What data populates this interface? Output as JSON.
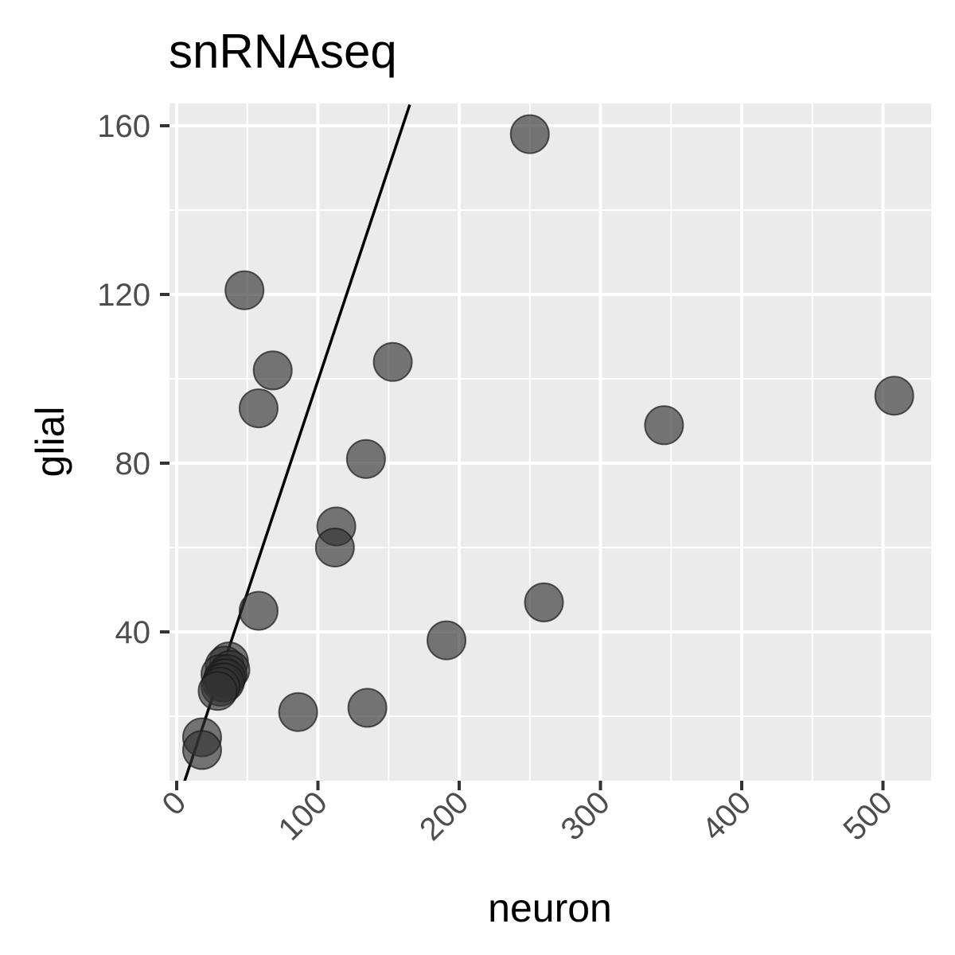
{
  "chart_data": {
    "type": "scatter",
    "title": "snRNAseq",
    "xlabel": "neuron",
    "ylabel": "glial",
    "xlim": [
      0,
      530
    ],
    "ylim": [
      4,
      165
    ],
    "x_ticks": [
      0,
      100,
      200,
      300,
      400,
      500
    ],
    "y_ticks": [
      40,
      80,
      120,
      160
    ],
    "x_tick_labels": [
      "0",
      "100",
      "200",
      "300",
      "400",
      "500"
    ],
    "y_tick_labels": [
      "40",
      "80",
      "120",
      "160"
    ],
    "grid": true,
    "background_color": "#ebebeb",
    "grid_color": "#ffffff",
    "point_color": "#333333",
    "points": [
      {
        "x": 250,
        "y": 158
      },
      {
        "x": 48,
        "y": 121
      },
      {
        "x": 68,
        "y": 102
      },
      {
        "x": 153,
        "y": 104
      },
      {
        "x": 58,
        "y": 93
      },
      {
        "x": 134,
        "y": 81
      },
      {
        "x": 113,
        "y": 65
      },
      {
        "x": 112,
        "y": 60
      },
      {
        "x": 58,
        "y": 45
      },
      {
        "x": 260,
        "y": 47
      },
      {
        "x": 191,
        "y": 38
      },
      {
        "x": 345,
        "y": 89
      },
      {
        "x": 508,
        "y": 96
      },
      {
        "x": 37,
        "y": 33
      },
      {
        "x": 34,
        "y": 32
      },
      {
        "x": 38,
        "y": 31
      },
      {
        "x": 31,
        "y": 30
      },
      {
        "x": 36,
        "y": 30
      },
      {
        "x": 33,
        "y": 29
      },
      {
        "x": 35,
        "y": 29
      },
      {
        "x": 32,
        "y": 28
      },
      {
        "x": 34,
        "y": 28
      },
      {
        "x": 31,
        "y": 27
      },
      {
        "x": 29,
        "y": 26
      },
      {
        "x": 86,
        "y": 21
      },
      {
        "x": 135,
        "y": 22
      },
      {
        "x": 18,
        "y": 15
      },
      {
        "x": 18,
        "y": 12
      }
    ],
    "reference_line": {
      "x1": 5,
      "y1": 4,
      "x2": 165,
      "y2": 165
    }
  }
}
